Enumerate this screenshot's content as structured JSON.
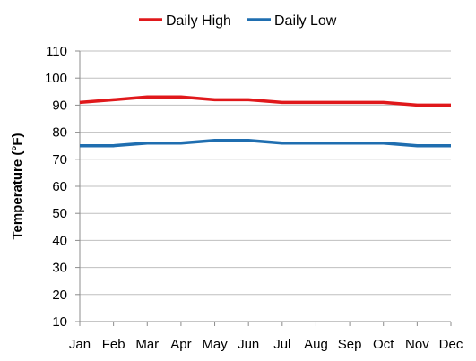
{
  "chart_data": {
    "type": "line",
    "title": "",
    "xlabel": "",
    "ylabel": "Temperature (°F)",
    "categories": [
      "Jan",
      "Feb",
      "Mar",
      "Apr",
      "May",
      "Jun",
      "Jul",
      "Aug",
      "Sep",
      "Oct",
      "Nov",
      "Dec"
    ],
    "ylim": [
      10,
      110
    ],
    "yticks": [
      "10",
      "20",
      "30",
      "40",
      "50",
      "60",
      "70",
      "80",
      "90",
      "100",
      "110"
    ],
    "grid": "horizontal",
    "legend_position": "top",
    "series": [
      {
        "name": "Daily High",
        "color": "#e0181b",
        "values": [
          91,
          92,
          93,
          93,
          92,
          92,
          91,
          91,
          91,
          91,
          90,
          90
        ]
      },
      {
        "name": "Daily Low",
        "color": "#1f6eb0",
        "values": [
          75,
          75,
          76,
          76,
          77,
          77,
          76,
          76,
          76,
          76,
          75,
          75
        ]
      }
    ]
  }
}
